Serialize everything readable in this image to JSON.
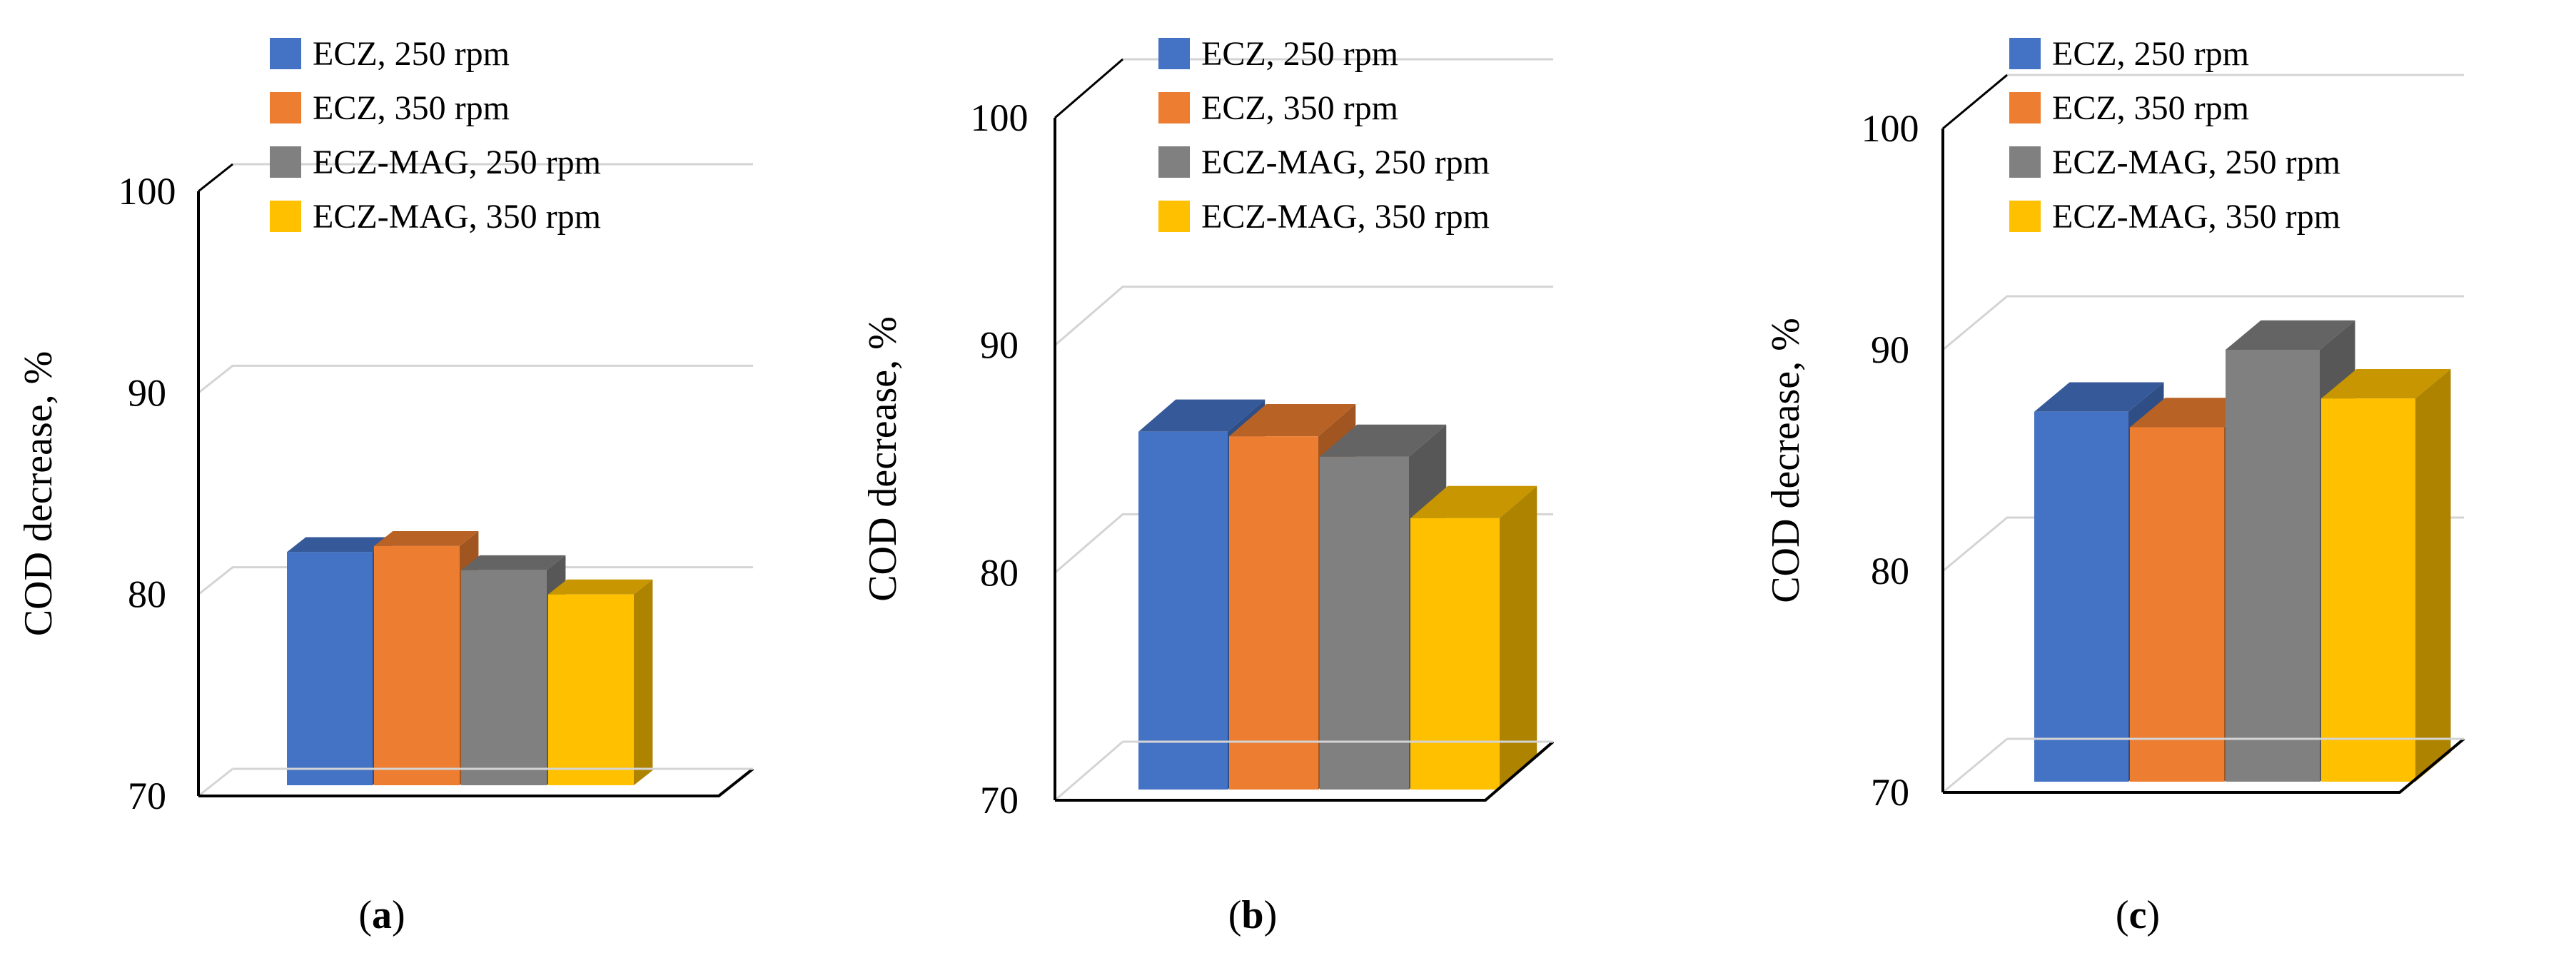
{
  "colors": {
    "ECZ, 250 rpm": "#4472c4",
    "ECZ, 350 rpm": "#ed7d31",
    "ECZ-MAG, 250 rpm": "#808080",
    "ECZ-MAG, 350 rpm": "#ffc000",
    "grid": "#d4d4d4",
    "axis": "#000000"
  },
  "chart_data": [
    {
      "type": "bar",
      "panel": "a",
      "caption": [
        "(",
        "a",
        ")"
      ],
      "ylabel": "COD decrease, %",
      "xlabel": "",
      "ylim": [
        70,
        100
      ],
      "yticks": [
        "70",
        "80",
        "90",
        "100"
      ],
      "categories": [
        ""
      ],
      "series": [
        {
          "name": "ECZ, 250 rpm",
          "values": [
            82.1
          ]
        },
        {
          "name": "ECZ, 350 rpm",
          "values": [
            82.4
          ]
        },
        {
          "name": "ECZ-MAG, 250 rpm",
          "values": [
            81.2
          ]
        },
        {
          "name": "ECZ-MAG, 350 rpm",
          "values": [
            80.0
          ]
        }
      ],
      "legend": [
        "ECZ, 250 rpm",
        "ECZ, 350 rpm",
        "ECZ-MAG, 250 rpm",
        "ECZ-MAG, 350 rpm"
      ],
      "legend_position": "top-right"
    },
    {
      "type": "bar",
      "panel": "b",
      "caption": [
        "(",
        "b",
        ")"
      ],
      "ylabel": "COD decrease, %",
      "xlabel": "",
      "ylim": [
        70,
        100
      ],
      "yticks": [
        "70",
        "80",
        "90",
        "100"
      ],
      "categories": [
        ""
      ],
      "series": [
        {
          "name": "ECZ, 250 rpm",
          "values": [
            86.2
          ]
        },
        {
          "name": "ECZ, 350 rpm",
          "values": [
            86.0
          ]
        },
        {
          "name": "ECZ-MAG, 250 rpm",
          "values": [
            85.1
          ]
        },
        {
          "name": "ECZ-MAG, 350 rpm",
          "values": [
            82.4
          ]
        }
      ],
      "legend": [
        "ECZ, 250 rpm",
        "ECZ, 350 rpm",
        "ECZ-MAG, 250 rpm",
        "ECZ-MAG, 350 rpm"
      ],
      "legend_position": "top-right"
    },
    {
      "type": "bar",
      "panel": "c",
      "caption": [
        "(",
        "c",
        ")"
      ],
      "ylabel": "COD decrease, %",
      "xlabel": "",
      "ylim": [
        70,
        100
      ],
      "yticks": [
        "70",
        "80",
        "90",
        "100"
      ],
      "categories": [
        ""
      ],
      "series": [
        {
          "name": "ECZ, 250 rpm",
          "values": [
            87.2
          ]
        },
        {
          "name": "ECZ, 350 rpm",
          "values": [
            86.5
          ]
        },
        {
          "name": "ECZ-MAG, 250 rpm",
          "values": [
            90.0
          ]
        },
        {
          "name": "ECZ-MAG, 350 rpm",
          "values": [
            87.8
          ]
        }
      ],
      "legend": [
        "ECZ, 250 rpm",
        "ECZ, 350 rpm",
        "ECZ-MAG, 250 rpm",
        "ECZ-MAG, 350 rpm"
      ],
      "legend_position": "top-right"
    }
  ]
}
